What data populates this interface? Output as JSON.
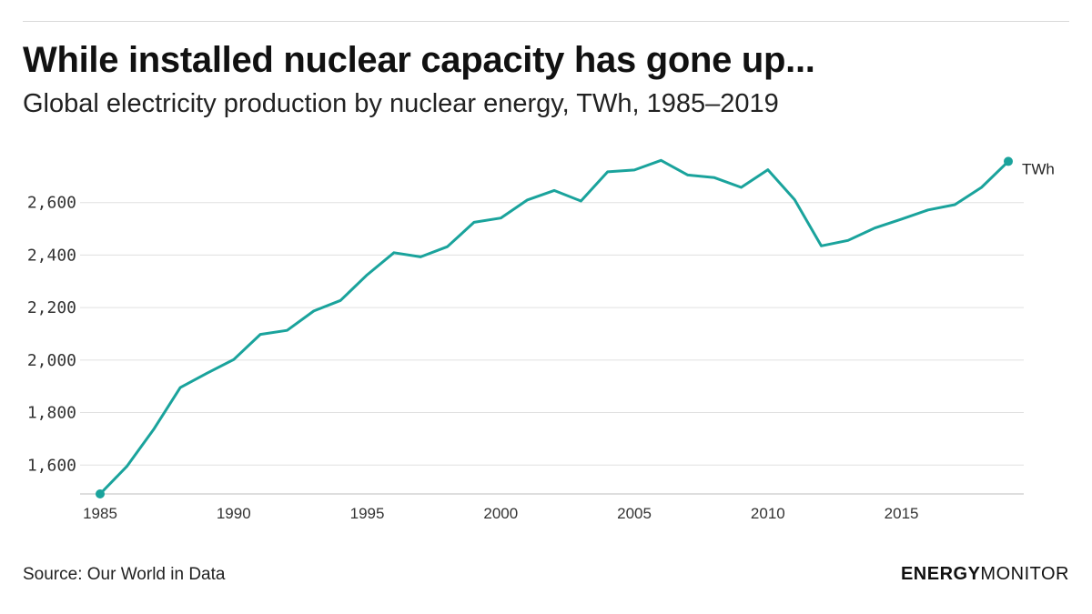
{
  "title": "While installed nuclear capacity has gone up...",
  "subtitle": "Global electricity production by nuclear energy, TWh, 1985–2019",
  "source": "Source: Our World in Data",
  "logo": {
    "part1": "ENERGY",
    "part2": "MONITOR"
  },
  "colors": {
    "line": "#1aa39c",
    "grid": "#e0e0e0",
    "axis": "#bdbdbd"
  },
  "chart_data": {
    "type": "line",
    "title": "While installed nuclear capacity has gone up...",
    "subtitle": "Global electricity production by nuclear energy, TWh, 1985–2019",
    "xlabel": "",
    "ylabel": "",
    "xlim": [
      1985,
      2019
    ],
    "ylim": [
      1490,
      2800
    ],
    "yticks": [
      1600,
      1800,
      2000,
      2200,
      2400,
      2600
    ],
    "ytick_labels": [
      "1,600",
      "1,800",
      "2,000",
      "2,200",
      "2,400",
      "2,600"
    ],
    "xticks": [
      1985,
      1990,
      1995,
      2000,
      2005,
      2010,
      2015
    ],
    "xtick_labels": [
      "1985",
      "1990",
      "1995",
      "2000",
      "2005",
      "2010",
      "2015"
    ],
    "grid": true,
    "series": [
      {
        "name": "TWh",
        "x": [
          1985,
          1986,
          1987,
          1988,
          1989,
          1990,
          1991,
          1992,
          1993,
          1994,
          1995,
          1996,
          1997,
          1998,
          1999,
          2000,
          2001,
          2002,
          2003,
          2004,
          2005,
          2006,
          2007,
          2008,
          2009,
          2010,
          2011,
          2012,
          2013,
          2014,
          2015,
          2016,
          2017,
          2018,
          2019
        ],
        "y": [
          1490,
          1595,
          1735,
          1895,
          1950,
          2002,
          2098,
          2113,
          2187,
          2227,
          2325,
          2409,
          2393,
          2432,
          2525,
          2541,
          2610,
          2646,
          2606,
          2717,
          2724,
          2761,
          2705,
          2695,
          2658,
          2725,
          2611,
          2435,
          2456,
          2503,
          2537,
          2572,
          2592,
          2658,
          2757
        ]
      }
    ]
  }
}
